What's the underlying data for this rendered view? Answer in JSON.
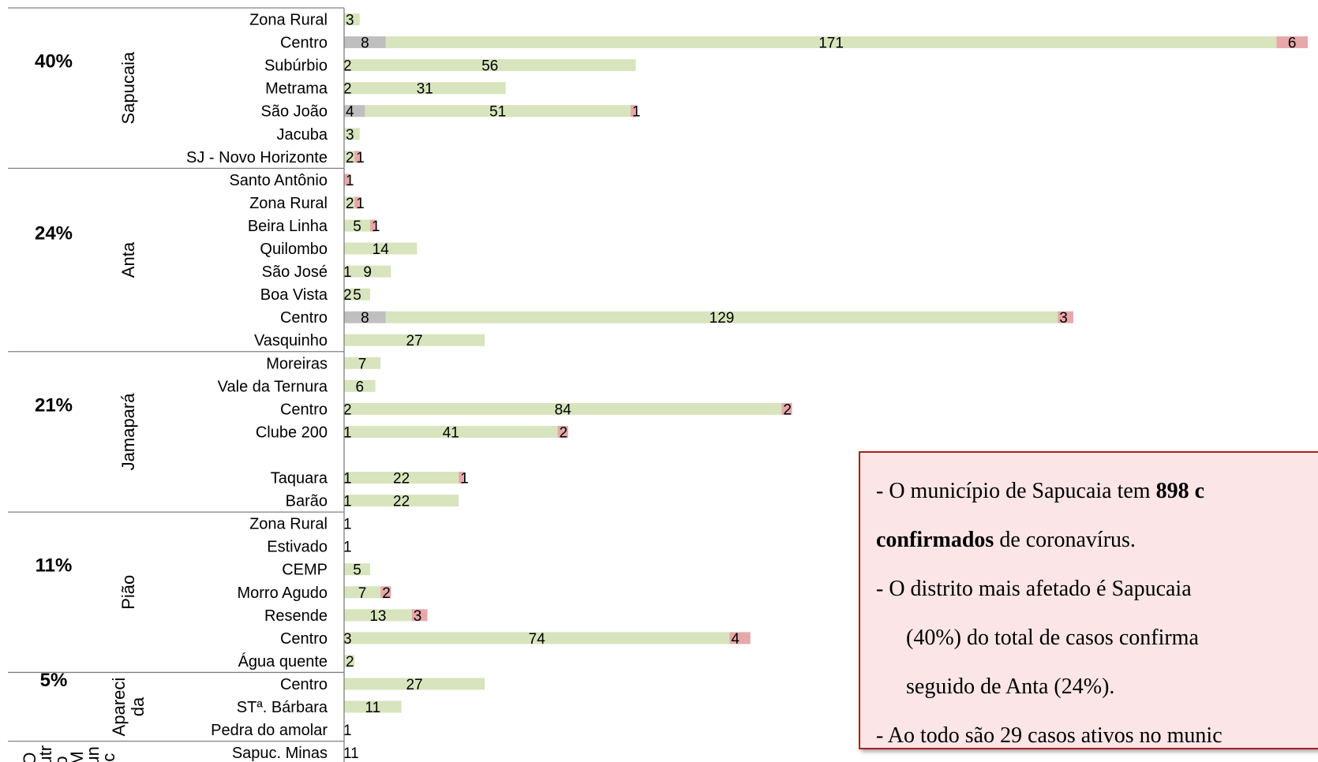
{
  "chart_data": {
    "type": "bar",
    "orientation": "horizontal",
    "stacked": true,
    "colors": {
      "seg1": "#bfbfbf",
      "seg2": "#d7e4bd",
      "seg3": "#e6a8a8"
    },
    "groups": [
      {
        "name": "Sapucaia",
        "percent": "40%",
        "rows": [
          {
            "label": "Zona Rural",
            "values": [
              null,
              3,
              null
            ]
          },
          {
            "label": "Centro",
            "values": [
              8,
              171,
              6
            ]
          },
          {
            "label": "Subúrbio",
            "values": [
              null,
              56,
              null
            ],
            "lead": "2"
          },
          {
            "label": "Metrama",
            "values": [
              null,
              31,
              null
            ],
            "lead": "2"
          },
          {
            "label": "São João ",
            "values": [
              4,
              51,
              1
            ]
          },
          {
            "label": "Jacuba",
            "values": [
              null,
              3,
              null
            ]
          },
          {
            "label": "SJ - Novo Horizonte",
            "values": [
              null,
              2,
              1
            ]
          }
        ]
      },
      {
        "name": "Anta",
        "percent": "24%",
        "rows": [
          {
            "label": "Santo Antônio",
            "values": [
              null,
              null,
              1
            ]
          },
          {
            "label": "Zona Rural",
            "values": [
              null,
              2,
              1
            ]
          },
          {
            "label": "Beira Linha",
            "values": [
              null,
              5,
              1
            ]
          },
          {
            "label": "Quilombo",
            "values": [
              null,
              14,
              null
            ]
          },
          {
            "label": "São José",
            "values": [
              null,
              9,
              null
            ],
            "lead": "1"
          },
          {
            "label": "Boa Vista",
            "values": [
              null,
              5,
              null
            ],
            "lead": "2"
          },
          {
            "label": "Centro",
            "values": [
              8,
              129,
              3
            ]
          },
          {
            "label": "Vasquinho",
            "values": [
              null,
              27,
              null
            ]
          }
        ]
      },
      {
        "name": "Jamapará",
        "percent": "21%",
        "rows": [
          {
            "label": "Moreiras",
            "values": [
              null,
              7,
              null
            ]
          },
          {
            "label": "Vale da Ternura",
            "values": [
              null,
              6,
              null
            ]
          },
          {
            "label": "Centro",
            "values": [
              null,
              84,
              2
            ],
            "lead": "2"
          },
          {
            "label": "Clube 200",
            "values": [
              null,
              41,
              2
            ],
            "lead": "1"
          },
          {
            "label": "",
            "values": [
              null,
              null,
              null
            ]
          },
          {
            "label": "Taquara",
            "values": [
              null,
              22,
              1
            ],
            "lead": "1"
          },
          {
            "label": "Barão",
            "values": [
              null,
              22,
              null
            ],
            "lead": "1"
          }
        ]
      },
      {
        "name": "Pião",
        "percent": "11%",
        "rows": [
          {
            "label": "Zona Rural",
            "values": [
              null,
              null,
              null
            ],
            "lead": "1"
          },
          {
            "label": "Estivado",
            "values": [
              null,
              null,
              null
            ],
            "lead": "1"
          },
          {
            "label": "CEMP",
            "values": [
              null,
              5,
              null
            ]
          },
          {
            "label": "Morro Agudo",
            "values": [
              null,
              7,
              2
            ]
          },
          {
            "label": "Resende",
            "values": [
              null,
              13,
              3
            ]
          },
          {
            "label": "Centro",
            "values": [
              null,
              74,
              4
            ],
            "lead": "3"
          },
          {
            "label": "Água quente",
            "values": [
              null,
              2,
              null
            ]
          }
        ]
      },
      {
        "name": "Apareci da",
        "name_lines": [
          "Apareci",
          "da"
        ],
        "percent": "5%",
        "rows": [
          {
            "label": "Centro",
            "values": [
              null,
              27,
              null
            ]
          },
          {
            "label": "STª. Bárbara",
            "values": [
              null,
              11,
              null
            ]
          },
          {
            "label": "Pedra do amolar",
            "values": [
              null,
              null,
              null
            ],
            "lead": "1"
          }
        ]
      },
      {
        "name": "Outro Mun",
        "name_lines": [
          "O",
          "utr",
          "o",
          "M",
          "un",
          "ic"
        ],
        "percent": "",
        "rows": [
          {
            "label": "Sapuc. Minas",
            "values": [
              null,
              null,
              null
            ],
            "lead": "11"
          }
        ]
      }
    ]
  },
  "note": {
    "line1_pre": "- O município de Sapucaia tem ",
    "line1_bold": "898 c",
    "line2_bold": "confirmados",
    "line2_post": " de coronavírus.",
    "line3": "- O distrito mais afetado é Sapucaia",
    "line4": "(40%) do total de casos confirma",
    "line5": "seguido de Anta (24%).",
    "line6": "- Ao todo são 29 casos ativos no munic"
  }
}
